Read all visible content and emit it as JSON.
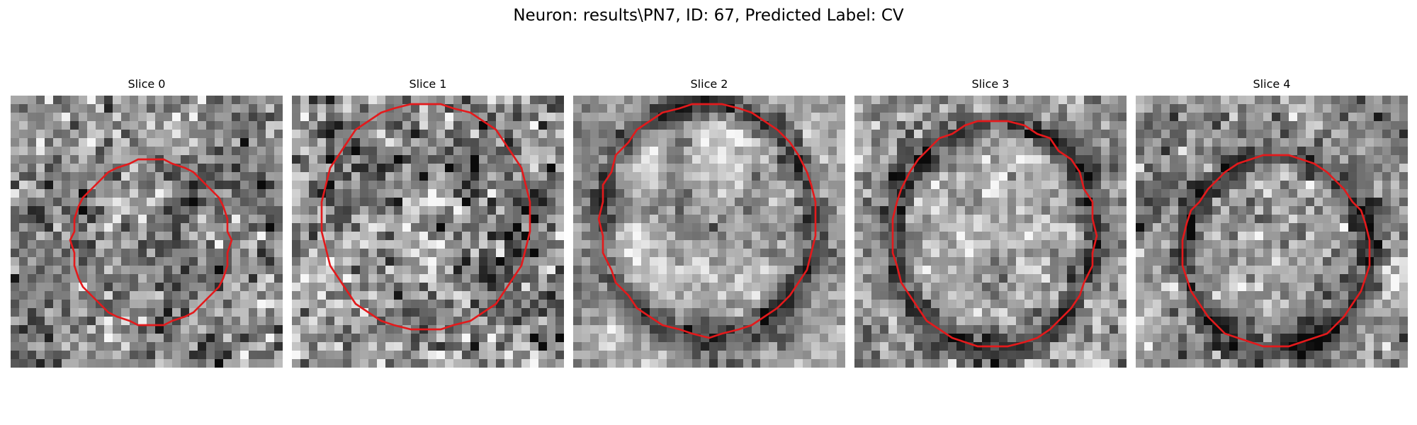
{
  "figure": {
    "title": "Neuron: results\\PN7, ID: 67, Predicted Label: CV",
    "grid_size": 32,
    "contour_color": "#e31a1c",
    "panels": [
      {
        "title": "Slice 0",
        "center": [
          16.5,
          17.2
        ],
        "radius": [
          9.3,
          9.8
        ],
        "dark_ring": false,
        "noise": 0.17,
        "mean": 0.55,
        "seed": 11
      },
      {
        "title": "Slice 1",
        "center": [
          15.7,
          14.2
        ],
        "radius": [
          12.4,
          13.4
        ],
        "dark_ring": false,
        "noise": 0.2,
        "mean": 0.55,
        "seed": 23
      },
      {
        "title": "Slice 2",
        "center": [
          15.8,
          14.6
        ],
        "radius": [
          12.6,
          13.7
        ],
        "dark_ring": true,
        "noise": 0.11,
        "mean": 0.62,
        "seed": 37
      },
      {
        "title": "Slice 3",
        "center": [
          16.4,
          16.4
        ],
        "radius": [
          11.9,
          13.3
        ],
        "dark_ring": true,
        "noise": 0.14,
        "mean": 0.6,
        "seed": 41
      },
      {
        "title": "Slice 4",
        "center": [
          16.5,
          18.4
        ],
        "radius": [
          10.9,
          11.3
        ],
        "dark_ring": true,
        "noise": 0.15,
        "mean": 0.57,
        "seed": 53
      }
    ]
  }
}
